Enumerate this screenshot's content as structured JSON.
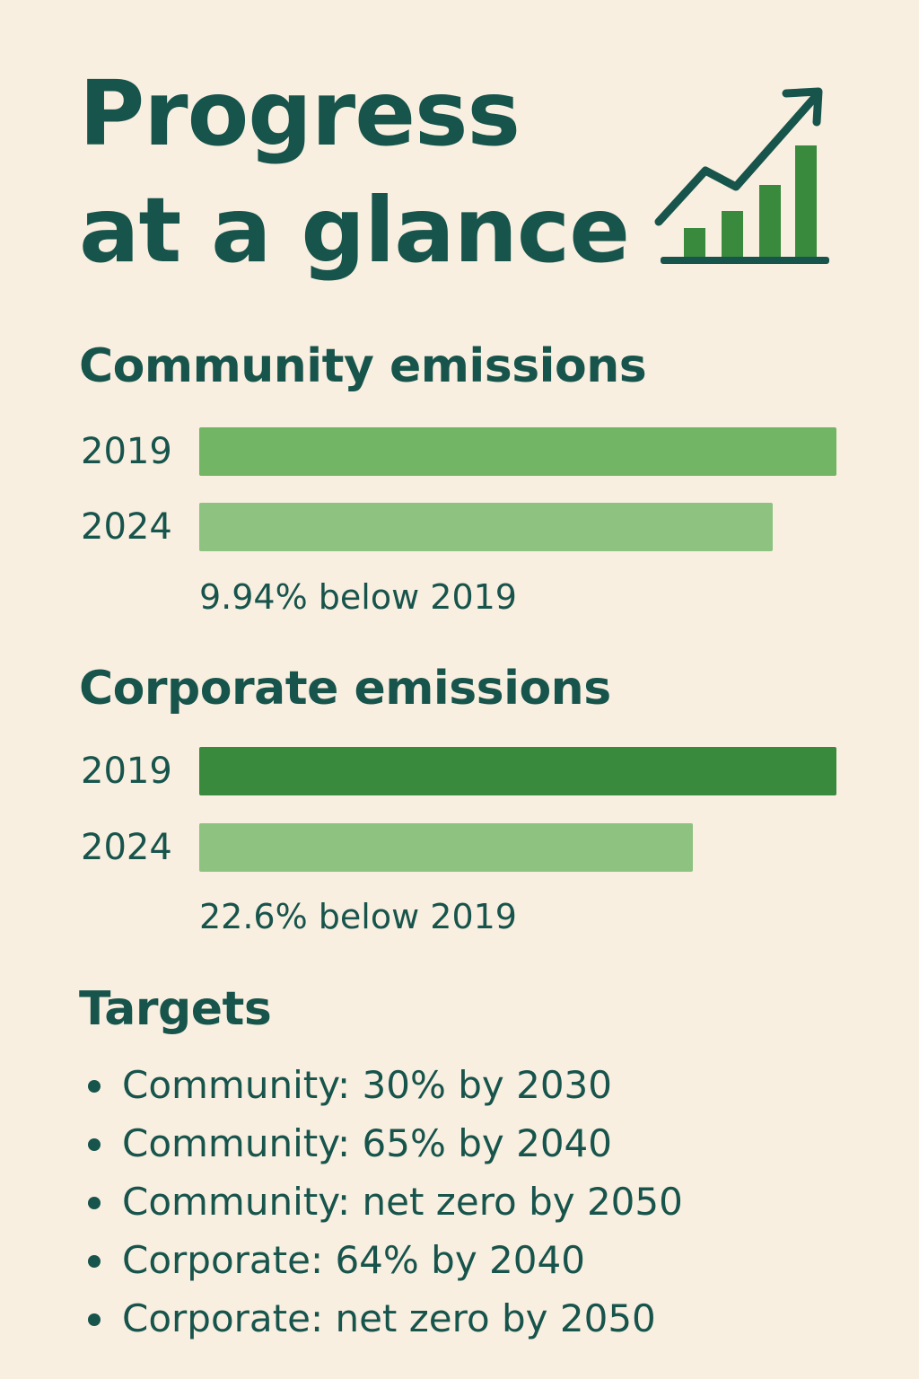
{
  "title_line1": "Progress",
  "title_line2": "at a glance",
  "icon": "trending-up-bar-chart-icon",
  "colors": {
    "text": "#17544c",
    "background": "#f9efe0",
    "community_2019": "#72b564",
    "community_2024": "#8ec280",
    "corporate_2019": "#3a8a3e",
    "corporate_2024": "#8ec280"
  },
  "chart_data": [
    {
      "type": "bar",
      "orientation": "horizontal",
      "title": "Community emissions",
      "categories": [
        "2019",
        "2024"
      ],
      "values": [
        100,
        90.06
      ],
      "xlim": [
        0,
        100
      ],
      "note": "9.94% below 2019"
    },
    {
      "type": "bar",
      "orientation": "horizontal",
      "title": "Corporate emissions",
      "categories": [
        "2019",
        "2024"
      ],
      "values": [
        100,
        77.4
      ],
      "xlim": [
        0,
        100
      ],
      "note": "22.6% below 2019"
    }
  ],
  "targets": {
    "title": "Targets",
    "items": [
      "Community: 30% by 2030",
      "Community: 65% by 2040",
      "Community: net zero by 2050",
      "Corporate: 64% by 2040",
      "Corporate: net zero by 2050"
    ]
  }
}
